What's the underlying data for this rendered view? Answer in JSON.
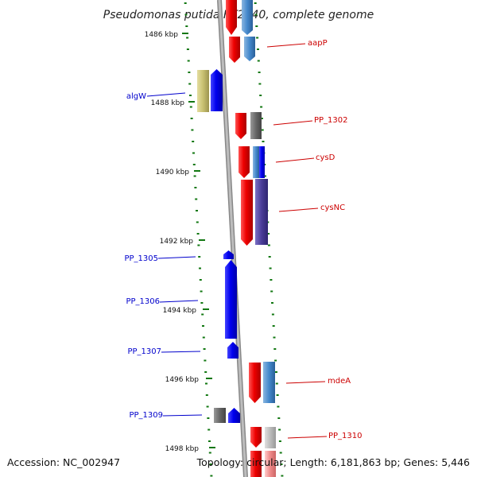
{
  "title": "Pseudomonas putida KT2440, complete genome",
  "accession": "Accession: NC_002947",
  "topology": "Topology: circular; Length: 6,181,863 bp; Genes: 5,446",
  "ticks": [
    {
      "label": "1486 kbp"
    },
    {
      "label": "1488 kbp"
    },
    {
      "label": "1490 kbp"
    },
    {
      "label": "1492 kbp"
    },
    {
      "label": "1494 kbp"
    },
    {
      "label": "1496 kbp"
    },
    {
      "label": "1498 kbp"
    }
  ],
  "labels_right": [
    {
      "text": "aapP"
    },
    {
      "text": "PP_1302"
    },
    {
      "text": "cysD"
    },
    {
      "text": "cysNC"
    },
    {
      "text": "mdeA"
    },
    {
      "text": "PP_1310"
    }
  ],
  "labels_left": [
    {
      "text": "algW"
    },
    {
      "text": "PP_1305"
    },
    {
      "text": "PP_1306"
    },
    {
      "text": "PP_1307"
    },
    {
      "text": "PP_1309"
    }
  ],
  "colors": {
    "forward": "#ee0000",
    "reverse": "#0000ee",
    "blue_light": "#4488cc",
    "olive": "#c8c070",
    "gray": "#666666",
    "light_gray": "#bbbbbb",
    "indigo": "#4a3d99",
    "tick_green": "#117711",
    "label_red": "#cc0000",
    "label_blue": "#0000cc"
  }
}
